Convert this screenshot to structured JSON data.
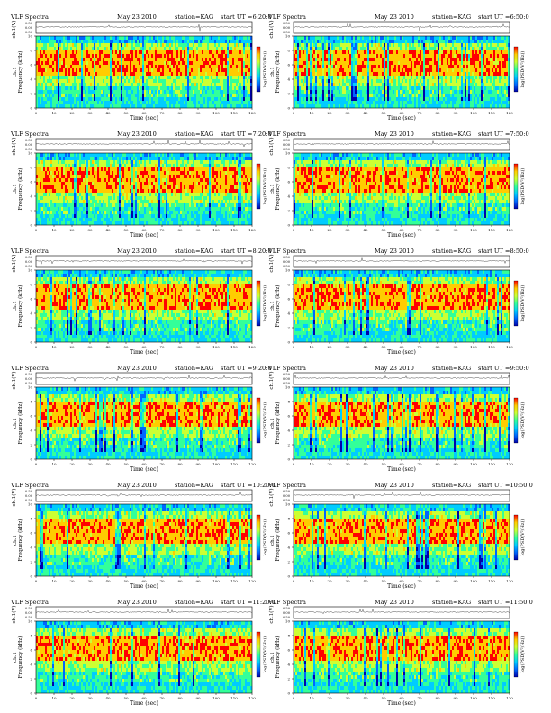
{
  "chart_data": {
    "type": "heatmap",
    "layout": {
      "rows": 6,
      "cols": 2
    },
    "common": {
      "title_left": "VLF Spectra",
      "title_date": "May 23 2010",
      "title_station": "station=KAG",
      "title_start_prefix": "start  UT =",
      "amp_ylabel": "ch.1(V)",
      "amp_ticks": [
        "0.00",
        "0.50"
      ],
      "amp_top_tick": "0.50",
      "ylabel_ch": "ch.1",
      "ylabel": "Frequency (kHz)",
      "xlabel": "Time (sec)",
      "xlim": [
        0,
        120
      ],
      "ylim_khz": [
        0,
        10
      ],
      "xticks": [
        0,
        10,
        20,
        30,
        40,
        50,
        60,
        70,
        80,
        90,
        100,
        110,
        120
      ],
      "yticks": [
        0,
        2,
        4,
        6,
        8,
        10
      ],
      "colorbar_label": "log(PSD(V²/Hz))",
      "colormap": [
        "#0000aa",
        "#0066ff",
        "#00ccff",
        "#33ff99",
        "#ccff33",
        "#ffcc00",
        "#ff0000"
      ]
    },
    "panels": [
      {
        "start": "6:20:0"
      },
      {
        "start": "6:50:0"
      },
      {
        "start": "7:20:0"
      },
      {
        "start": "7:50:0"
      },
      {
        "start": "8:20:0"
      },
      {
        "start": "8:50:0"
      },
      {
        "start": "9:20:0"
      },
      {
        "start": "9:50:0"
      },
      {
        "start": "10:20:0"
      },
      {
        "start": "10:50:0"
      },
      {
        "start": "11:20:0"
      },
      {
        "start": "11:50:0"
      }
    ]
  }
}
